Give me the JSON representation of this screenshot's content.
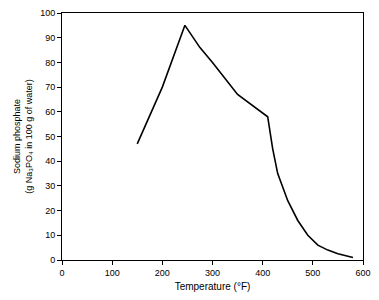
{
  "chart_data": {
    "type": "line",
    "x_label": "Temperature (°F)",
    "y_label": "Sodium phosphate\n(g Na₃PO₄ in 100 g of water)",
    "x": [
      150,
      200,
      245,
      275,
      300,
      350,
      410,
      420,
      430,
      450,
      470,
      490,
      510,
      530,
      550,
      580
    ],
    "values": [
      47,
      70,
      95,
      86,
      80,
      67,
      58,
      45,
      35,
      24,
      16,
      10,
      6,
      4,
      2.5,
      1
    ],
    "color": "#000000",
    "xlim": [
      0,
      600
    ],
    "xticks": [
      0,
      100,
      200,
      300,
      400,
      500,
      600
    ],
    "ylim": [
      0,
      100
    ],
    "yticks": [
      0,
      10,
      20,
      30,
      40,
      50,
      60,
      70,
      80,
      90,
      100
    ],
    "grid": false
  }
}
